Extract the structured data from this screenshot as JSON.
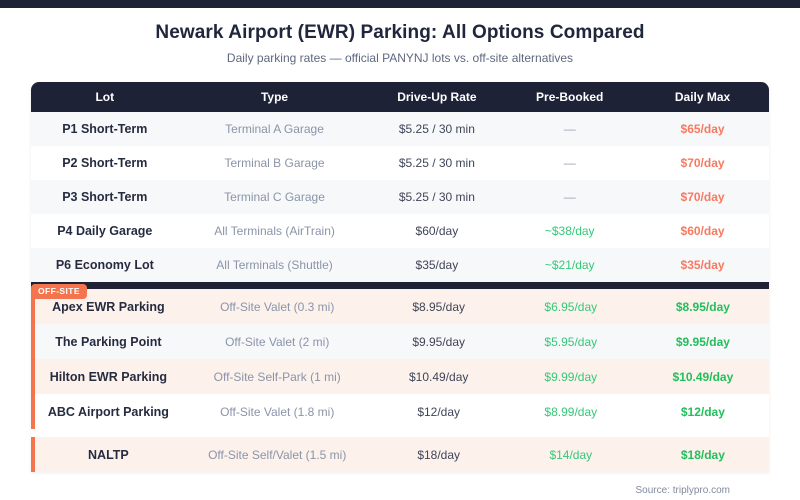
{
  "header": {
    "title": "Newark Airport (EWR) Parking: All Options Compared",
    "subtitle": "Daily parking rates — official PANYNJ lots vs. off-site alternatives"
  },
  "footer": {
    "source": "Source: triplypro.com"
  },
  "colors": {
    "dark_navy": "#1e2236",
    "accent_orange": "#f4744e",
    "coral_text": "#f87960",
    "green_text": "#35c878",
    "green_bold_text": "#22bf5b",
    "pink_row": "#fdf1ec",
    "gray_row": "#f7f8fa"
  },
  "chart_data": {
    "type": "table",
    "title": "Newark Airport (EWR) Parking: All Options Compared",
    "subtitle": "Daily parking rates — official PANYNJ lots vs. off-site alternatives",
    "columns": [
      "Lot",
      "Type",
      "Drive-Up Rate",
      "Pre-Booked",
      "Daily Max"
    ],
    "offsite_badge": "OFF-SITE",
    "official_rows": [
      {
        "lot": "P1 Short-Term",
        "type": "Terminal A Garage",
        "drive_up": "$5.25 / 30 min",
        "pre_booked": "—",
        "daily_max": "$65/day"
      },
      {
        "lot": "P2 Short-Term",
        "type": "Terminal B Garage",
        "drive_up": "$5.25 / 30 min",
        "pre_booked": "—",
        "daily_max": "$70/day"
      },
      {
        "lot": "P3 Short-Term",
        "type": "Terminal C Garage",
        "drive_up": "$5.25 / 30 min",
        "pre_booked": "—",
        "daily_max": "$70/day"
      },
      {
        "lot": "P4 Daily Garage",
        "type": "All Terminals (AirTrain)",
        "drive_up": "$60/day",
        "pre_booked": "~$38/day",
        "daily_max": "$60/day"
      },
      {
        "lot": "P6 Economy Lot",
        "type": "All Terminals (Shuttle)",
        "drive_up": "$35/day",
        "pre_booked": "~$21/day",
        "daily_max": "$35/day"
      }
    ],
    "offsite_rows": [
      {
        "lot": "Apex EWR Parking",
        "type": "Off-Site Valet (0.3 mi)",
        "drive_up": "$8.95/day",
        "pre_booked": "$6.95/day",
        "daily_max": "$8.95/day"
      },
      {
        "lot": "The Parking Point",
        "type": "Off-Site Valet (2 mi)",
        "drive_up": "$9.95/day",
        "pre_booked": "$5.95/day",
        "daily_max": "$9.95/day"
      },
      {
        "lot": "Hilton EWR Parking",
        "type": "Off-Site Self-Park (1 mi)",
        "drive_up": "$10.49/day",
        "pre_booked": "$9.99/day",
        "daily_max": "$10.49/day"
      },
      {
        "lot": "ABC Airport Parking",
        "type": "Off-Site Valet (1.8 mi)",
        "drive_up": "$12/day",
        "pre_booked": "$8.99/day",
        "daily_max": "$12/day"
      }
    ],
    "offsite_rows_2": [
      {
        "lot": "NALTP",
        "type": "Off-Site Self/Valet (1.5 mi)",
        "drive_up": "$18/day",
        "pre_booked": "$14/day",
        "daily_max": "$18/day"
      }
    ]
  }
}
